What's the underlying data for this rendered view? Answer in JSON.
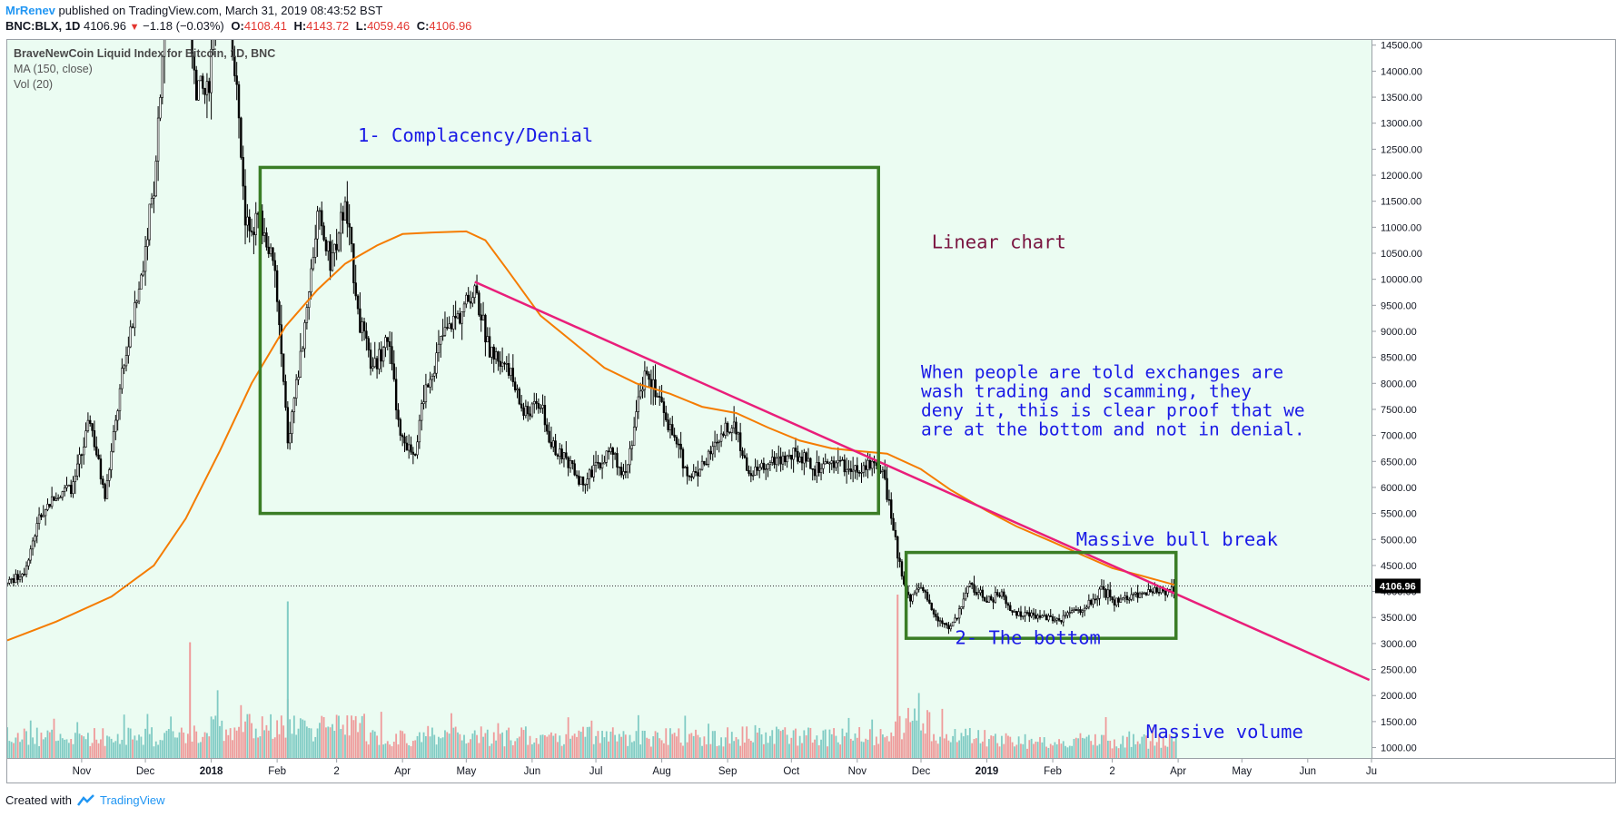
{
  "header": {
    "author": "MrRenev",
    "published": "published on TradingView.com, March 31, 2019 08:43:52 BST",
    "symbol": "BNC:BLX, 1D",
    "last": "4106.96",
    "change": "−1.18 (−0.03%)",
    "o_label": "O:",
    "o_value": "4108.41",
    "h_label": "H:",
    "h_value": "4143.72",
    "l_label": "L:",
    "l_value": "4059.46",
    "c_label": "C:",
    "c_value": "4106.96"
  },
  "legend": {
    "title": "BraveNewCoin Liquid Index for Bitcoin, 1D, BNC",
    "ma": "MA (150, close)",
    "vol": "Vol (20)"
  },
  "footer": {
    "created_with": "Created with",
    "brand": "TradingView"
  },
  "colors": {
    "background": "#ebfcf2",
    "candle": "#000000",
    "ma": "#f57c00",
    "trendline": "#e91e7a",
    "box": "#3a7d26",
    "vol_up": "#80cbc4",
    "vol_down": "#ef9a9a",
    "annotation": "#1a1ae6",
    "annotation_alt": "#7a1440"
  },
  "chart_data": {
    "type": "candlestick",
    "title": "BraveNewCoin Liquid Index for Bitcoin, 1D, BNC",
    "ylim": [
      800,
      14600
    ],
    "yticks": [
      1000,
      1500,
      2000,
      2500,
      3000,
      3500,
      4000,
      4500,
      5000,
      5500,
      6000,
      6500,
      7000,
      7500,
      8000,
      8500,
      9000,
      9500,
      10000,
      10500,
      11000,
      11500,
      12000,
      12500,
      13000,
      13500,
      14000,
      14500
    ],
    "xlim": [
      "2017-09-27",
      "2019-07-01"
    ],
    "xticks": [
      {
        "date": "2017-11-01",
        "label": "Nov"
      },
      {
        "date": "2017-12-01",
        "label": "Dec"
      },
      {
        "date": "2018-01-01",
        "label": "2018"
      },
      {
        "date": "2018-02-01",
        "label": "Feb"
      },
      {
        "date": "2018-03-01",
        "label": "2"
      },
      {
        "date": "2018-04-01",
        "label": "Apr"
      },
      {
        "date": "2018-05-01",
        "label": "May"
      },
      {
        "date": "2018-06-01",
        "label": "Jun"
      },
      {
        "date": "2018-07-01",
        "label": "Jul"
      },
      {
        "date": "2018-08-01",
        "label": "Aug"
      },
      {
        "date": "2018-09-01",
        "label": "Sep"
      },
      {
        "date": "2018-10-01",
        "label": "Oct"
      },
      {
        "date": "2018-11-01",
        "label": "Nov"
      },
      {
        "date": "2018-12-01",
        "label": "Dec"
      },
      {
        "date": "2019-01-01",
        "label": "2019"
      },
      {
        "date": "2019-02-01",
        "label": "Feb"
      },
      {
        "date": "2019-03-01",
        "label": "2"
      },
      {
        "date": "2019-04-01",
        "label": "Apr"
      },
      {
        "date": "2019-05-01",
        "label": "May"
      },
      {
        "date": "2019-06-01",
        "label": "Jun"
      },
      {
        "date": "2019-07-01",
        "label": "Ju"
      }
    ],
    "last_price": "4106.96",
    "price_path": [
      [
        "2017-09-27",
        4150
      ],
      [
        "2017-10-05",
        4400
      ],
      [
        "2017-10-12",
        5400
      ],
      [
        "2017-10-20",
        5900
      ],
      [
        "2017-10-28",
        6000
      ],
      [
        "2017-11-05",
        7300
      ],
      [
        "2017-11-12",
        5800
      ],
      [
        "2017-11-20",
        8100
      ],
      [
        "2017-11-28",
        9800
      ],
      [
        "2017-12-05",
        11800
      ],
      [
        "2017-12-10",
        15000
      ],
      [
        "2017-12-17",
        19000
      ],
      [
        "2017-12-24",
        13800
      ],
      [
        "2017-12-30",
        13500
      ],
      [
        "2018-01-06",
        16500
      ],
      [
        "2018-01-13",
        13700
      ],
      [
        "2018-01-17",
        11000
      ],
      [
        "2018-01-24",
        11200
      ],
      [
        "2018-01-31",
        10100
      ],
      [
        "2018-02-06",
        6900
      ],
      [
        "2018-02-12",
        8500
      ],
      [
        "2018-02-20",
        11200
      ],
      [
        "2018-02-26",
        10300
      ],
      [
        "2018-03-05",
        11400
      ],
      [
        "2018-03-12",
        9200
      ],
      [
        "2018-03-18",
        8200
      ],
      [
        "2018-03-25",
        8900
      ],
      [
        "2018-03-31",
        6900
      ],
      [
        "2018-04-07",
        6700
      ],
      [
        "2018-04-12",
        7900
      ],
      [
        "2018-04-20",
        8900
      ],
      [
        "2018-04-28",
        9350
      ],
      [
        "2018-05-05",
        9800
      ],
      [
        "2018-05-12",
        8600
      ],
      [
        "2018-05-20",
        8400
      ],
      [
        "2018-05-28",
        7400
      ],
      [
        "2018-06-05",
        7600
      ],
      [
        "2018-06-10",
        6800
      ],
      [
        "2018-06-18",
        6500
      ],
      [
        "2018-06-24",
        6100
      ],
      [
        "2018-07-01",
        6350
      ],
      [
        "2018-07-08",
        6700
      ],
      [
        "2018-07-15",
        6300
      ],
      [
        "2018-07-20",
        7400
      ],
      [
        "2018-07-25",
        8300
      ],
      [
        "2018-08-01",
        7600
      ],
      [
        "2018-08-07",
        6900
      ],
      [
        "2018-08-14",
        6200
      ],
      [
        "2018-08-22",
        6500
      ],
      [
        "2018-08-30",
        7000
      ],
      [
        "2018-09-04",
        7350
      ],
      [
        "2018-09-10",
        6300
      ],
      [
        "2018-09-18",
        6400
      ],
      [
        "2018-09-26",
        6550
      ],
      [
        "2018-10-05",
        6600
      ],
      [
        "2018-10-12",
        6300
      ],
      [
        "2018-10-20",
        6500
      ],
      [
        "2018-10-28",
        6400
      ],
      [
        "2018-11-05",
        6450
      ],
      [
        "2018-11-13",
        6400
      ],
      [
        "2018-11-16",
        5650
      ],
      [
        "2018-11-20",
        4700
      ],
      [
        "2018-11-25",
        3850
      ],
      [
        "2018-11-30",
        4100
      ],
      [
        "2018-12-07",
        3600
      ],
      [
        "2018-12-14",
        3250
      ],
      [
        "2018-12-19",
        3600
      ],
      [
        "2018-12-24",
        4150
      ],
      [
        "2019-01-01",
        3800
      ],
      [
        "2019-01-08",
        4000
      ],
      [
        "2019-01-12",
        3600
      ],
      [
        "2019-01-20",
        3550
      ],
      [
        "2019-01-28",
        3500
      ],
      [
        "2019-02-05",
        3450
      ],
      [
        "2019-02-10",
        3600
      ],
      [
        "2019-02-16",
        3650
      ],
      [
        "2019-02-24",
        4050
      ],
      [
        "2019-03-02",
        3800
      ],
      [
        "2019-03-10",
        3900
      ],
      [
        "2019-03-18",
        4000
      ],
      [
        "2019-03-25",
        4000
      ],
      [
        "2019-03-31",
        4107
      ]
    ],
    "ma_path": [
      [
        "2017-09-27",
        3060
      ],
      [
        "2017-10-20",
        3420
      ],
      [
        "2017-11-15",
        3900
      ],
      [
        "2017-12-05",
        4500
      ],
      [
        "2017-12-20",
        5400
      ],
      [
        "2018-01-05",
        6700
      ],
      [
        "2018-01-20",
        8000
      ],
      [
        "2018-02-05",
        9100
      ],
      [
        "2018-02-20",
        9800
      ],
      [
        "2018-03-05",
        10300
      ],
      [
        "2018-03-20",
        10650
      ],
      [
        "2018-04-01",
        10870
      ],
      [
        "2018-04-15",
        10900
      ],
      [
        "2018-05-01",
        10920
      ],
      [
        "2018-05-10",
        10750
      ],
      [
        "2018-05-20",
        10200
      ],
      [
        "2018-06-05",
        9300
      ],
      [
        "2018-06-20",
        8800
      ],
      [
        "2018-07-05",
        8300
      ],
      [
        "2018-07-20",
        8000
      ],
      [
        "2018-08-05",
        7800
      ],
      [
        "2018-08-20",
        7550
      ],
      [
        "2018-09-05",
        7430
      ],
      [
        "2018-09-20",
        7150
      ],
      [
        "2018-10-05",
        6900
      ],
      [
        "2018-10-20",
        6750
      ],
      [
        "2018-11-01",
        6700
      ],
      [
        "2018-11-15",
        6650
      ],
      [
        "2018-12-01",
        6350
      ],
      [
        "2018-12-15",
        5950
      ],
      [
        "2019-01-01",
        5550
      ],
      [
        "2019-01-15",
        5250
      ],
      [
        "2019-02-01",
        4950
      ],
      [
        "2019-02-15",
        4700
      ],
      [
        "2019-03-01",
        4450
      ],
      [
        "2019-03-15",
        4300
      ],
      [
        "2019-03-31",
        4120
      ]
    ],
    "trendline": {
      "start": [
        "2018-05-05",
        9950
      ],
      "end": [
        "2019-06-30",
        2300
      ]
    },
    "volume_axis_top": 6000,
    "annotations": [
      {
        "id": "box1",
        "kind": "rectangle",
        "x": [
          "2018-01-24",
          "2018-11-11"
        ],
        "y": [
          5500,
          12150
        ]
      },
      {
        "id": "box2",
        "kind": "rectangle",
        "x": [
          "2018-11-24",
          "2019-03-31"
        ],
        "y": [
          3100,
          4750
        ]
      },
      {
        "id": "t1",
        "text": "1- Complacency/Denial",
        "at": [
          "2018-03-11",
          12650
        ]
      },
      {
        "id": "t2",
        "text": "Linear chart",
        "at": [
          "2018-12-06",
          10600
        ],
        "color": "annotation_alt"
      },
      {
        "id": "t3",
        "lines": [
          "When people are told exchanges are",
          "wash trading and scamming, they",
          "deny it, this is clear proof that we",
          "are at the bottom and not in denial."
        ],
        "at": [
          "2018-12-01",
          8100
        ]
      },
      {
        "id": "t4",
        "text": "Massive bull break",
        "at": [
          "2019-02-12",
          4880
        ]
      },
      {
        "id": "t5",
        "text": "2- The bottom",
        "at": [
          "2018-12-17",
          2990
        ]
      },
      {
        "id": "t6",
        "text": "Massive volume",
        "at": [
          "2019-03-17",
          1180
        ]
      }
    ]
  }
}
